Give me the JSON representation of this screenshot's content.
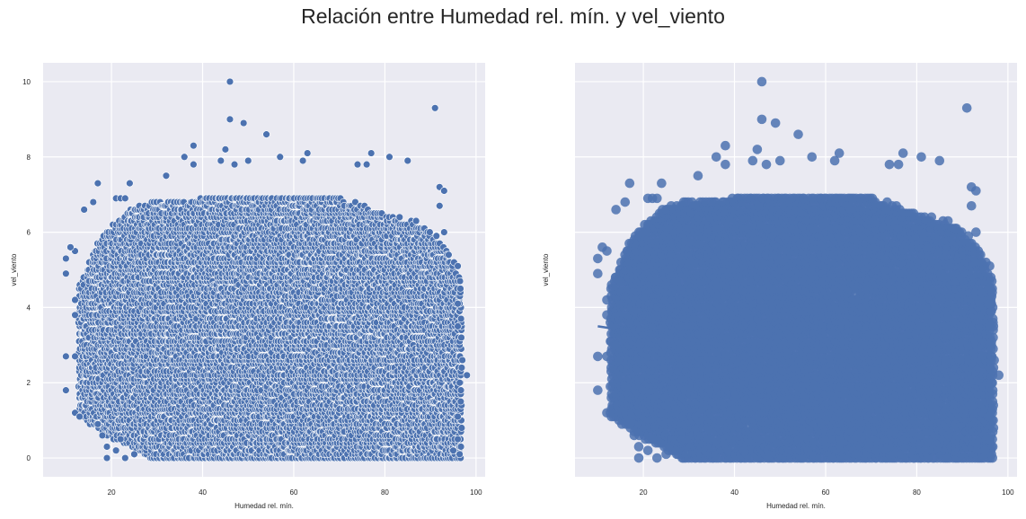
{
  "suptitle": "Relación entre Humedad rel. mín. y vel_viento",
  "colors": {
    "background": "#eaeaf2",
    "grid": "#ffffff",
    "point": "#4c72b0",
    "point_edge": "#ffffff"
  },
  "chart_data": [
    {
      "type": "scatter",
      "title": "",
      "xlabel": "Humedad rel. mín.",
      "ylabel": "vel_viento",
      "xlim": [
        5,
        102
      ],
      "ylim": [
        -0.5,
        10.5
      ],
      "xticks": [
        20,
        40,
        60,
        80,
        100
      ],
      "yticks": [
        0,
        2,
        4,
        6,
        8,
        10
      ],
      "grid": true,
      "legend": "none",
      "marker": "white-edged",
      "points": [
        [
          46,
          10.0
        ],
        [
          91,
          9.3
        ],
        [
          46,
          9.0
        ],
        [
          49,
          8.9
        ],
        [
          54,
          8.6
        ],
        [
          38,
          8.3
        ],
        [
          45,
          8.2
        ],
        [
          36,
          8.0
        ],
        [
          57,
          8.0
        ],
        [
          63,
          8.1
        ],
        [
          77,
          8.1
        ],
        [
          81,
          8.0
        ],
        [
          85,
          7.9
        ],
        [
          38,
          7.8
        ],
        [
          44,
          7.9
        ],
        [
          47,
          7.8
        ],
        [
          50,
          7.9
        ],
        [
          62,
          7.9
        ],
        [
          74,
          7.8
        ],
        [
          76,
          7.8
        ],
        [
          17,
          7.3
        ],
        [
          24,
          7.3
        ],
        [
          32,
          7.5
        ],
        [
          92,
          7.2
        ],
        [
          93,
          7.1
        ],
        [
          21,
          6.9
        ],
        [
          22,
          6.9
        ],
        [
          23,
          6.9
        ],
        [
          14,
          6.6
        ],
        [
          16,
          6.8
        ],
        [
          12,
          5.5
        ],
        [
          10,
          5.3
        ],
        [
          11,
          5.6
        ],
        [
          10,
          4.9
        ],
        [
          12,
          4.2
        ],
        [
          12,
          3.8
        ],
        [
          10,
          2.7
        ],
        [
          12,
          2.7
        ],
        [
          10,
          1.8
        ],
        [
          12,
          1.2
        ],
        [
          13,
          1.1
        ],
        [
          17,
          0.9
        ],
        [
          18,
          0.6
        ],
        [
          19,
          0.3
        ],
        [
          19,
          0.0
        ],
        [
          21,
          0.2
        ],
        [
          23,
          0.0
        ],
        [
          25,
          0.1
        ],
        [
          22,
          0.5
        ],
        [
          97,
          2.6
        ],
        [
          98,
          2.2
        ],
        [
          96,
          1.1
        ],
        [
          96,
          0.5
        ],
        [
          95,
          0.2
        ],
        [
          96,
          4.1
        ],
        [
          96,
          3.5
        ],
        [
          96,
          5.1
        ],
        [
          94,
          5.4
        ],
        [
          93,
          6.0
        ],
        [
          92,
          6.7
        ]
      ],
      "dense_region": {
        "description_values": "overplotted mass of observations",
        "x_range": [
          13,
          97
        ],
        "y_top_profile": [
          [
            13,
            4.6
          ],
          [
            16,
            5.5
          ],
          [
            20,
            6.2
          ],
          [
            25,
            6.7
          ],
          [
            30,
            6.8
          ],
          [
            40,
            6.9
          ],
          [
            50,
            7.0
          ],
          [
            60,
            7.0
          ],
          [
            70,
            6.9
          ],
          [
            80,
            6.5
          ],
          [
            88,
            6.2
          ],
          [
            92,
            5.8
          ],
          [
            95,
            5.2
          ],
          [
            97,
            4.6
          ]
        ],
        "y_bottom": 0.0,
        "lower_left_gap": [
          [
            13,
            1.2
          ],
          [
            16,
            0.9
          ],
          [
            20,
            0.6
          ],
          [
            25,
            0.3
          ],
          [
            28,
            0.0
          ]
        ]
      }
    },
    {
      "type": "scatter",
      "title": "",
      "xlabel": "Humedad rel. mín.",
      "ylabel": "vel_viento",
      "xlim": [
        5,
        102
      ],
      "ylim": [
        -0.5,
        10.5
      ],
      "xticks": [
        20,
        40,
        60,
        80,
        100
      ],
      "yticks": [
        0,
        2,
        4,
        6,
        8,
        10
      ],
      "grid": true,
      "legend": "none",
      "marker": "large-solid",
      "regression_line": {
        "x": [
          10,
          97
        ],
        "y": [
          3.5,
          1.9
        ]
      },
      "same_points_as_left": true
    }
  ]
}
